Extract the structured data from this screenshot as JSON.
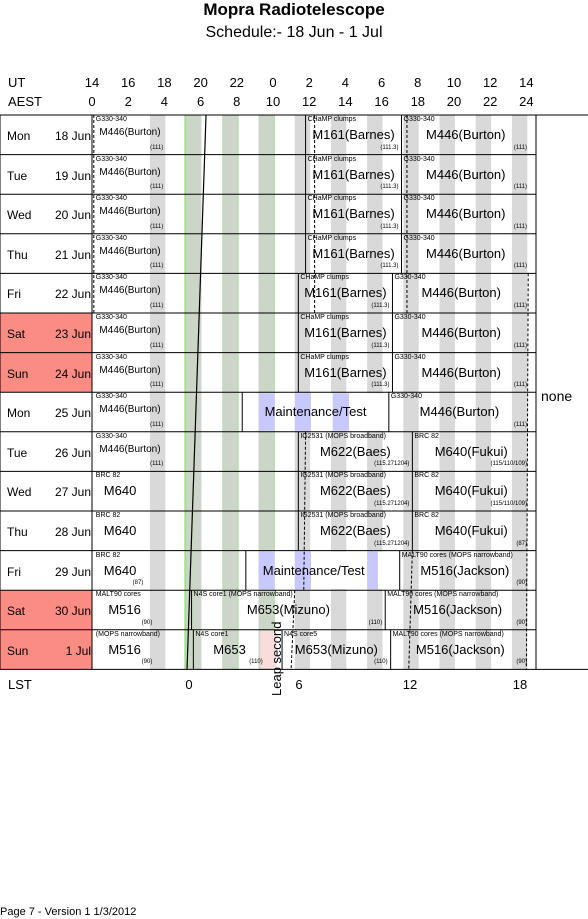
{
  "header": {
    "title": "Mopra Radiotelescope",
    "subtitle": "Schedule:- 18 Jun - 1  Jul"
  },
  "axes": {
    "ut_label": "UT",
    "aest_label": "AEST",
    "lst_label": "LST",
    "ut_ticks": [
      "14",
      "16",
      "18",
      "20",
      "22",
      "0",
      "2",
      "4",
      "6",
      "8",
      "10",
      "12",
      "14"
    ],
    "aest_ticks": [
      "0",
      "2",
      "4",
      "6",
      "8",
      "10",
      "12",
      "14",
      "16",
      "18",
      "20",
      "22",
      "24"
    ],
    "lst_ticks": [
      "0",
      "6",
      "12",
      "18"
    ]
  },
  "colors": {
    "weekend": "#fa8c84",
    "green": "#a0e28c",
    "gray": "#d2d2d2",
    "lavender": "#c8c8fa",
    "pink": "#fadcdc"
  },
  "days": [
    {
      "name": "Mon",
      "date": "18 Jun",
      "weekend": false
    },
    {
      "name": "Tue",
      "date": "19 Jun",
      "weekend": false
    },
    {
      "name": "Wed",
      "date": "20 Jun",
      "weekend": false
    },
    {
      "name": "Thu",
      "date": "21 Jun",
      "weekend": false
    },
    {
      "name": "Fri",
      "date": "22 Jun",
      "weekend": false
    },
    {
      "name": "Sat",
      "date": "23 Jun",
      "weekend": true
    },
    {
      "name": "Sun",
      "date": "24 Jun",
      "weekend": true
    },
    {
      "name": "Mon",
      "date": "25 Jun",
      "weekend": false
    },
    {
      "name": "Tue",
      "date": "26 Jun",
      "weekend": false
    },
    {
      "name": "Wed",
      "date": "27 Jun",
      "weekend": false
    },
    {
      "name": "Thu",
      "date": "28 Jun",
      "weekend": false
    },
    {
      "name": "Fri",
      "date": "29 Jun",
      "weekend": false
    },
    {
      "name": "Sat",
      "date": "30 Jun",
      "weekend": true
    },
    {
      "name": "Sun",
      "date": "1  Jul",
      "weekend": true
    }
  ],
  "blocks": [
    [
      {
        "top": "G330-340",
        "name": "M446(Burton)",
        "num": "(111)"
      },
      {
        "top": "CHaMP clumps",
        "name": "M161(Barnes)",
        "num": "(111.3)"
      },
      {
        "top": "G330-340",
        "name": "M446(Burton)",
        "num": "(111)"
      }
    ],
    [
      {
        "top": "G330-340",
        "name": "M446(Burton)",
        "num": "(111)"
      },
      {
        "top": "CHaMP clumps",
        "name": "M161(Barnes)",
        "num": "(111.3)"
      },
      {
        "top": "G330-340",
        "name": "M446(Burton)",
        "num": "(111)"
      }
    ],
    [
      {
        "top": "G330-340",
        "name": "M446(Burton)",
        "num": "(111)"
      },
      {
        "top": "CHaMP clumps",
        "name": "M161(Barnes)",
        "num": "(111.3)"
      },
      {
        "top": "G330-340",
        "name": "M446(Burton)",
        "num": "(111)"
      }
    ],
    [
      {
        "top": "G330-340",
        "name": "M446(Burton)",
        "num": "(111)"
      },
      {
        "top": "CHaMP clumps",
        "name": "M161(Barnes)",
        "num": "(111.3)"
      },
      {
        "top": "G330-340",
        "name": "M446(Burton)",
        "num": "(111)"
      }
    ],
    [
      {
        "top": "G330-340",
        "name": "M446(Burton)",
        "num": "(111)"
      },
      {
        "top": "CHaMP clumps",
        "name": "M161(Barnes)",
        "num": "(111.3)"
      },
      {
        "top": "G330-340",
        "name": "M446(Burton)",
        "num": "(111)"
      }
    ],
    [
      {
        "top": "G330-340",
        "name": "M446(Burton)",
        "num": "(111)"
      },
      {
        "top": "CHaMP clumps",
        "name": "M161(Barnes)",
        "num": "(111.3)"
      },
      {
        "top": "G330-340",
        "name": "M446(Burton)",
        "num": "(111)"
      }
    ],
    [
      {
        "top": "G330-340",
        "name": "M446(Burton)",
        "num": "(111)"
      },
      {
        "top": "CHaMP clumps",
        "name": "M161(Barnes)",
        "num": "(111.3)"
      },
      {
        "top": "G330-340",
        "name": "M446(Burton)",
        "num": "(111)"
      }
    ],
    [
      {
        "top": "G330-340",
        "name": "M446(Burton)",
        "num": "(111)"
      },
      {
        "top": "",
        "name": "Maintenance/Test",
        "num": ""
      },
      {
        "top": "G330-340",
        "name": "M446(Burton)",
        "num": "(111)"
      }
    ],
    [
      {
        "top": "G330-340",
        "name": "M446(Burton)",
        "num": "(111)"
      },
      {
        "top": "IG2531      (MOPS broadband)",
        "name": "M622(Baes)",
        "num": "(115.271204)"
      },
      {
        "top": "BRC 82",
        "name": "M640(Fukui)",
        "num": "(115/110/109)"
      }
    ],
    [
      {
        "top": "BRC 82",
        "name": "M640",
        "num": ""
      },
      {
        "top": "IG2531      (MOPS broadband)",
        "name": "M622(Baes)",
        "num": "(115.271204)"
      },
      {
        "top": "BRC 82",
        "name": "M640(Fukui)",
        "num": "(115/110/109)"
      }
    ],
    [
      {
        "top": "BRC 82",
        "name": "M640",
        "num": ""
      },
      {
        "top": "IG2531      (MOPS broadband)",
        "name": "M622(Baes)",
        "num": "(115.271204)"
      },
      {
        "top": "BRC 82",
        "name": "M640(Fukui)",
        "num": "(87)"
      }
    ],
    [
      {
        "top": "BRC 82",
        "name": "M640",
        "num": "(87)"
      },
      {
        "top": "",
        "name": "Maintenance/Test",
        "num": ""
      },
      {
        "top": "MALT90 cores   (MOPS narrowband)",
        "name": "M516(Jackson)",
        "num": "(90)"
      }
    ],
    [
      {
        "top": "MALT90 cores",
        "name": "M516",
        "num": "(90)"
      },
      {
        "top": "N4S core1          (MOPS narrowband)",
        "name": "M653(Mizuno)",
        "num": "(110)"
      },
      {
        "top": "MALT90 cores   (MOPS narrowband)",
        "name": "M516(Jackson)",
        "num": "(90)"
      }
    ],
    [
      {
        "top": "(MOPS narrowband)",
        "name": "M516",
        "num": "(90)"
      },
      {
        "top": "N4S core1",
        "name": "M653",
        "num": "(110)"
      },
      {
        "top": "N4S core5",
        "name": "M653(Mizuno)",
        "num": "(110)"
      },
      {
        "top": "MALT90 cores   (MOPS narrowband)",
        "name": "M516(Jackson)",
        "num": "(90)"
      }
    ]
  ],
  "side_note": "none",
  "leap_second": "Leap second",
  "footer": "Page 7 - Version 1  1/3/2012"
}
